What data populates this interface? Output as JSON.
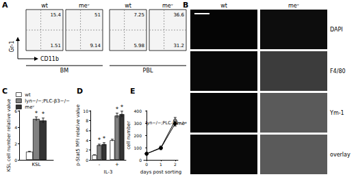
{
  "flow_cytometry": {
    "title": "A",
    "x_label": "CD11b",
    "y_label": "Gr-1",
    "groups": [
      {
        "label": "BM",
        "plots": [
          {
            "title": "wt",
            "upper_right": 15.4,
            "lower_right": 1.51
          },
          {
            "title": "meᵛ",
            "upper_right": 51,
            "lower_right": 9.14
          }
        ]
      },
      {
        "label": "PBL",
        "plots": [
          {
            "title": "wt",
            "upper_right": 7.25,
            "lower_right": 5.98
          },
          {
            "title": "meᵛ",
            "upper_right": 36.6,
            "lower_right": 31.2
          }
        ]
      }
    ]
  },
  "microscopy": {
    "title": "B",
    "columns": [
      "wt",
      "meᵛ"
    ],
    "rows": [
      "DAPI",
      "F4/80",
      "Ym-1",
      "overlay"
    ]
  },
  "chart_data": [
    {
      "type": "bar",
      "title": "C",
      "y_label": "KSL cell number relative value",
      "categories": [
        "KSL"
      ],
      "ylim": [
        0,
        6
      ],
      "yticks": [
        0,
        2,
        4,
        6
      ],
      "grid": false,
      "legend": "upper left",
      "series": [
        {
          "name": "wt",
          "color": "#ffffff",
          "values": [
            1
          ],
          "errors": [
            0.05
          ]
        },
        {
          "name": "lyn−/−;PLC-β3−/−",
          "color": "#808080",
          "values": [
            5
          ],
          "errors": [
            0.25
          ]
        },
        {
          "name": "meᵛ",
          "color": "#333333",
          "values": [
            4.8
          ],
          "errors": [
            0.3
          ]
        }
      ],
      "annotations": [
        {
          "series": "lyn−/−;PLC-β3−/−",
          "category": "KSL",
          "text": "*"
        },
        {
          "series": "meᵛ",
          "category": "KSL",
          "text": "*"
        }
      ]
    },
    {
      "type": "bar",
      "title": "D",
      "y_label": "p-Stat5 MFI relative value",
      "x_label": "IL-3",
      "categories": [
        "-",
        "+"
      ],
      "ylim": [
        0,
        10
      ],
      "yticks": [
        0,
        2,
        4,
        6,
        8,
        10
      ],
      "grid": false,
      "series": [
        {
          "name": "wt",
          "color": "#ffffff",
          "values": [
            1,
            4
          ],
          "errors": [
            0.05,
            0.2
          ]
        },
        {
          "name": "lyn−/−;PLC-β3−/−",
          "color": "#808080",
          "values": [
            3,
            9
          ],
          "errors": [
            0.2,
            0.5
          ]
        },
        {
          "name": "meᵛ",
          "color": "#333333",
          "values": [
            3.2,
            9.3
          ],
          "errors": [
            0.3,
            0.6
          ]
        }
      ],
      "annotations": [
        {
          "series": "lyn−/−;PLC-β3−/−",
          "category": "-",
          "text": "*"
        },
        {
          "series": "meᵛ",
          "category": "-",
          "text": "*"
        },
        {
          "series": "lyn−/−;PLC-β3−/−",
          "category": "+",
          "text": "*"
        },
        {
          "series": "meᵛ",
          "category": "+",
          "text": "*"
        }
      ]
    },
    {
      "type": "line",
      "title": "E",
      "x_label": "days post sorting",
      "y_label": "cell number",
      "x": [
        0,
        1,
        2
      ],
      "xlim": [
        -0.2,
        2.2
      ],
      "xticks": [
        0,
        1,
        2
      ],
      "ylim": [
        0,
        400
      ],
      "yticks": [
        0,
        100,
        200,
        300,
        400
      ],
      "grid": false,
      "series": [
        {
          "name": "lyn−/−;PLC-β3−/−",
          "color": "#808080",
          "marker": "circle",
          "values": [
            50,
            100,
            320
          ],
          "errors": [
            5,
            10,
            25
          ]
        },
        {
          "name": "meᵛ",
          "color": "#000000",
          "marker": "circle",
          "values": [
            50,
            95,
            295
          ],
          "errors": [
            5,
            10,
            20
          ]
        }
      ]
    }
  ]
}
